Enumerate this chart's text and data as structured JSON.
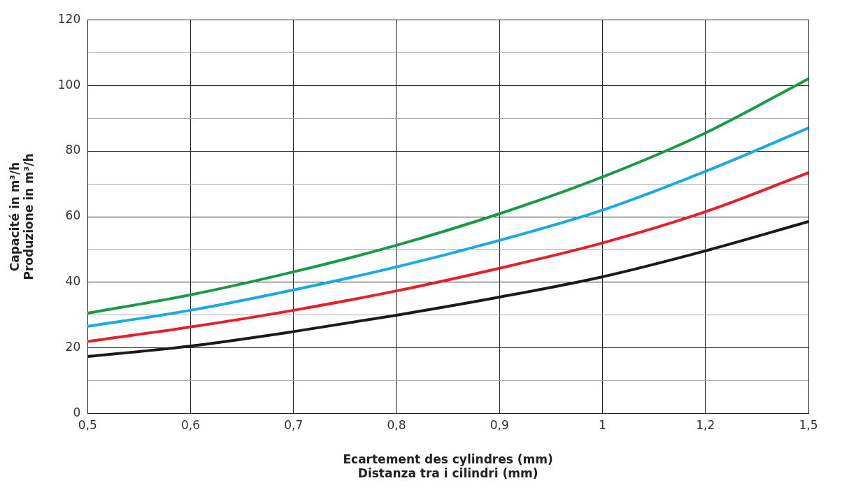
{
  "chart_data": {
    "type": "line",
    "xlabel": "Ecartement des cylindres (mm)\nDistanza tra i cilindri (mm)",
    "ylabel": "Capacité in m³/h\nProduzione in m³/h",
    "categories": [
      "0,5",
      "0,6",
      "0,7",
      "0,8",
      "0,9",
      "1",
      "1,2",
      "1,5"
    ],
    "series": [
      {
        "color": "#1a9a48",
        "values": [
          30.6,
          36.2,
          43.2,
          51.3,
          60.9,
          72.1,
          85.5,
          102
        ]
      },
      {
        "color": "#1aa9e0",
        "values": [
          26.6,
          31.5,
          37.7,
          44.7,
          52.8,
          62,
          73.8,
          87
        ]
      },
      {
        "color": "#e5202a",
        "values": [
          22,
          26.4,
          31.5,
          37.4,
          44.3,
          52,
          61.5,
          73.4
        ]
      },
      {
        "color": "#1a1a1a",
        "values": [
          17.4,
          20.6,
          25,
          30,
          35.5,
          41.7,
          49.6,
          58.5
        ]
      }
    ],
    "ylim": [
      0,
      120
    ],
    "yticks": [
      0,
      {
        "value": 10,
        "label": null
      },
      20,
      {
        "value": 30,
        "label": null
      },
      40,
      {
        "value": 50,
        "label": null
      },
      60,
      {
        "value": 70,
        "label": null
      },
      80,
      {
        "value": 90,
        "label": null
      },
      100,
      {
        "value": 110,
        "label": null
      },
      120
    ],
    "grid": true,
    "marker": "none",
    "line_style": "solid",
    "legend": false
  }
}
